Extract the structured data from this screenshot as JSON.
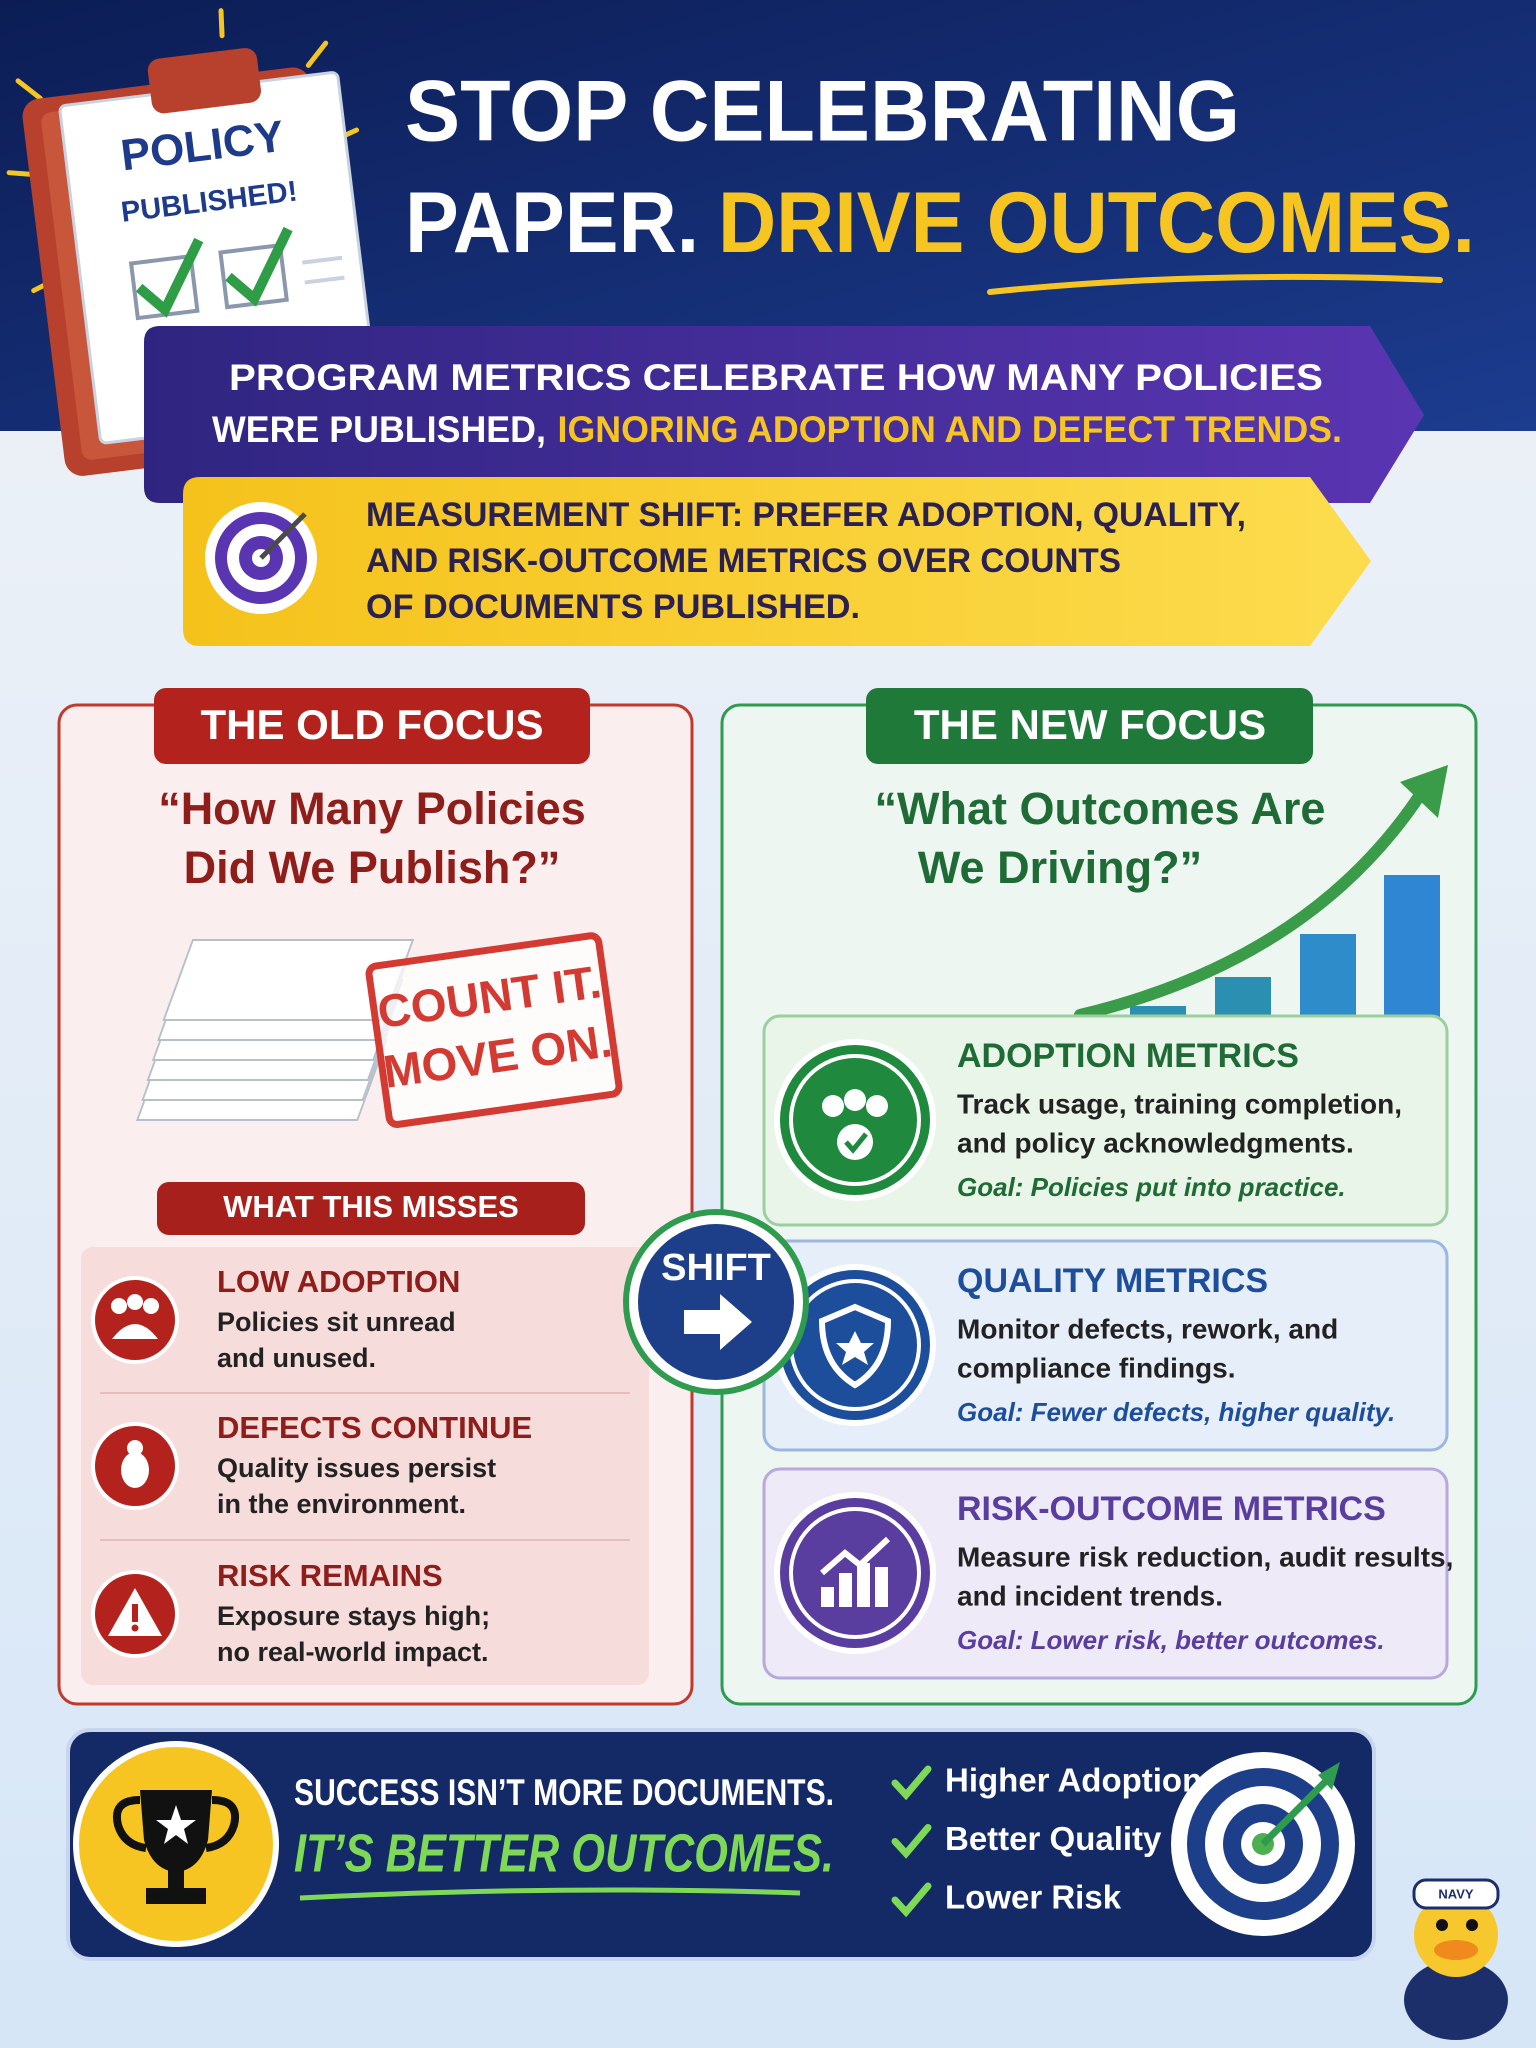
{
  "clipboard": {
    "line1": "POLICY",
    "line2": "PUBLISHED!"
  },
  "header": {
    "title_line1": "STOP CELEBRATING",
    "title_line2": "PAPER.",
    "title_highlight": "DRIVE OUTCOMES."
  },
  "banner": {
    "lines": [
      "PROGRAM METRICS CELEBRATE HOW MANY POLICIES",
      "WERE PUBLISHED,"
    ],
    "highlight": "IGNORING ADOPTION AND DEFECT TRENDS."
  },
  "shift_banner": {
    "lines": [
      "MEASUREMENT SHIFT: PREFER ADOPTION, QUALITY,",
      "AND RISK-OUTCOME METRICS OVER COUNTS",
      "OF DOCUMENTS PUBLISHED."
    ]
  },
  "old_focus": {
    "title": "THE OLD FOCUS",
    "question": [
      "“How Many Policies",
      "Did We Publish?”"
    ],
    "stamp": [
      "COUNT IT.",
      "MOVE ON."
    ],
    "misses_title": "WHAT THIS MISSES",
    "items": [
      {
        "title": "LOW ADOPTION",
        "lines": [
          "Policies sit unread",
          "and unused."
        ]
      },
      {
        "title": "DEFECTS CONTINUE",
        "lines": [
          "Quality issues persist",
          "in the environment."
        ]
      },
      {
        "title": "RISK REMAINS",
        "lines": [
          "Exposure stays high;",
          "no real-world impact."
        ]
      }
    ]
  },
  "shift": "SHIFT",
  "new_focus": {
    "title": "THE NEW FOCUS",
    "question": [
      "“What Outcomes Are",
      "We Driving?”"
    ],
    "metrics": [
      {
        "title": "ADOPTION METRICS",
        "lines": [
          "Track usage, training completion,",
          "and policy acknowledgments."
        ],
        "goal": "Goal: Policies put into practice."
      },
      {
        "title": "QUALITY METRICS",
        "lines": [
          "Monitor defects, rework, and",
          "compliance findings."
        ],
        "goal": "Goal: Fewer defects, higher quality."
      },
      {
        "title": "RISK-OUTCOME METRICS",
        "lines": [
          "Measure risk reduction, audit results,",
          "and incident trends."
        ],
        "goal": "Goal: Lower risk, better outcomes."
      }
    ]
  },
  "footer": {
    "line1": "SUCCESS ISN’T MORE DOCUMENTS.",
    "line2": "IT’S BETTER OUTCOMES.",
    "checklist": [
      "Higher Adoption",
      "Better Quality",
      "Lower Risk"
    ],
    "mascot_hat": "NAVY"
  }
}
